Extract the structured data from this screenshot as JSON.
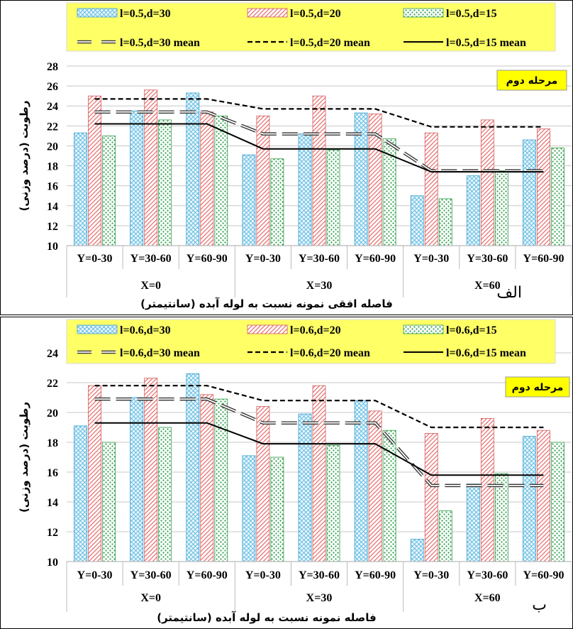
{
  "chart_data": [
    {
      "type": "bar",
      "panel_letter": "الف",
      "stage_label": "مرحله دوم",
      "ylabel": "رطوبت (درصد وزنی)",
      "xlabel": "فاصله افقی نمونه نسبت به لوله آبده (سانتیمتر)",
      "ylim": [
        10,
        28
      ],
      "yticks": [
        "10",
        "12",
        "14",
        "16",
        "18",
        "20",
        "22",
        "24",
        "26",
        "28"
      ],
      "categories": [
        "Y=0-30",
        "Y=30-60",
        "Y=60-90",
        "Y=0-30",
        "Y=30-60",
        "Y=60-90",
        "Y=0-30",
        "Y=30-60",
        "Y=60-90"
      ],
      "groups": [
        "X=0",
        "X=30",
        "X=60"
      ],
      "legend_placement": "top",
      "series": [
        {
          "name": "l=0.5,d=30",
          "values": [
            21.3,
            23.5,
            25.3,
            19.1,
            21.2,
            23.3,
            15.0,
            17.0,
            20.6
          ],
          "color": "#5bb8e0"
        },
        {
          "name": "l=0.5,d=20",
          "values": [
            25.0,
            25.6,
            23.4,
            23.0,
            25.0,
            23.2,
            21.3,
            22.6,
            21.7
          ],
          "color": "#e87070"
        },
        {
          "name": "l=0.5,d=15",
          "values": [
            21.0,
            22.6,
            23.0,
            18.7,
            19.6,
            20.7,
            14.7,
            17.5,
            19.8
          ],
          "color": "#2e9d4a"
        }
      ],
      "means": [
        {
          "name": "l=0.5,d=30 mean",
          "style": "long-dash",
          "values": [
            23.4,
            23.4,
            23.4,
            21.2,
            21.2,
            21.2,
            17.5,
            17.5,
            17.5
          ]
        },
        {
          "name": "l=0.5,d=20  mean",
          "style": "dash",
          "values": [
            24.7,
            24.7,
            24.7,
            23.7,
            23.7,
            23.7,
            21.9,
            21.9,
            21.9
          ]
        },
        {
          "name": "l=0.5,d=15 mean",
          "style": "solid",
          "values": [
            22.2,
            22.2,
            22.2,
            19.7,
            19.7,
            19.7,
            17.4,
            17.4,
            17.4
          ]
        }
      ]
    },
    {
      "type": "bar",
      "panel_letter": "ب",
      "stage_label": "مرحله دوم",
      "ylabel": "رطوبت (درصد وزنی)",
      "xlabel": "فاصله نمونه نسبت به لوله آبده (سانتیمتر)",
      "ylim": [
        10,
        24
      ],
      "yticks": [
        "10",
        "12",
        "14",
        "16",
        "18",
        "20",
        "22",
        "24"
      ],
      "categories": [
        "Y=0-30",
        "Y=30-60",
        "Y=60-90",
        "Y=0-30",
        "Y=30-60",
        "Y=60-90",
        "Y=0-30",
        "Y=30-60",
        "Y=60-90"
      ],
      "groups": [
        "X=0",
        "X=30",
        "X=60"
      ],
      "legend_placement": "top",
      "series": [
        {
          "name": "l=0.6,d=30",
          "values": [
            19.1,
            21.0,
            22.6,
            17.1,
            19.9,
            20.8,
            11.5,
            15.2,
            18.4
          ],
          "color": "#5bb8e0"
        },
        {
          "name": "l=0.6,d=20",
          "values": [
            21.8,
            22.3,
            21.2,
            20.4,
            21.8,
            20.1,
            18.6,
            19.6,
            18.8
          ],
          "color": "#e87070"
        },
        {
          "name": "l=0.6,d=15",
          "values": [
            18.0,
            19.0,
            20.9,
            17.0,
            17.8,
            18.8,
            13.4,
            15.9,
            18.0
          ],
          "color": "#2e9d4a"
        }
      ],
      "means": [
        {
          "name": "l=0.6,d=30 mean",
          "style": "long-dash",
          "values": [
            20.9,
            20.9,
            20.9,
            19.3,
            19.3,
            19.3,
            15.1,
            15.1,
            15.1
          ]
        },
        {
          "name": "l=0.6,d=20 mean",
          "style": "dash",
          "values": [
            21.8,
            21.8,
            21.8,
            20.8,
            20.8,
            20.8,
            19.0,
            19.0,
            19.0
          ]
        },
        {
          "name": "l=0.6,d=15 mean",
          "style": "solid",
          "values": [
            19.3,
            19.3,
            19.3,
            17.9,
            17.9,
            17.9,
            15.8,
            15.8,
            15.8
          ]
        }
      ]
    }
  ]
}
